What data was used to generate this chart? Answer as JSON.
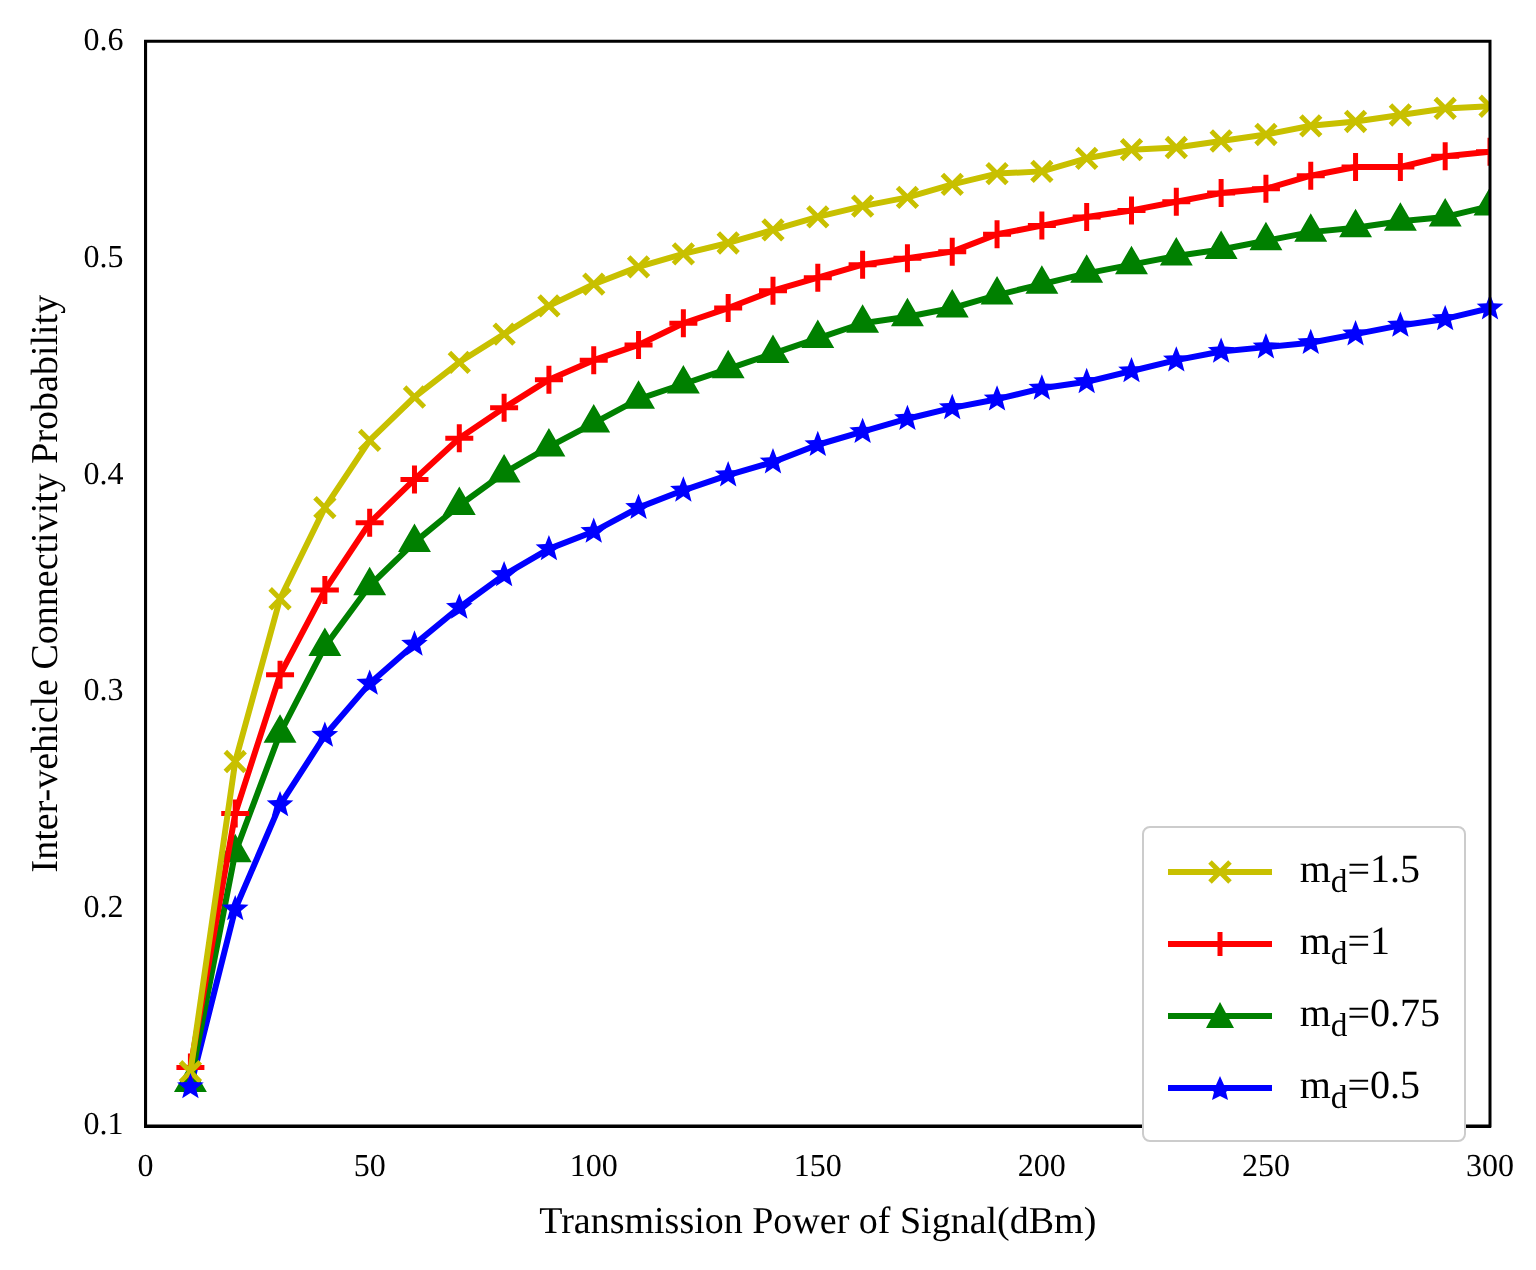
{
  "chart_data": {
    "type": "line",
    "xlabel": "Transmission Power of Signal(dBm)",
    "ylabel": "Inter-vehicle Connectivity Probability",
    "x": [
      10,
      20,
      30,
      40,
      50,
      60,
      70,
      80,
      90,
      100,
      110,
      120,
      130,
      140,
      150,
      160,
      170,
      180,
      190,
      200,
      210,
      220,
      230,
      240,
      250,
      260,
      270,
      280,
      290,
      300
    ],
    "xlim": [
      0,
      300
    ],
    "xticks": [
      0,
      50,
      100,
      150,
      200,
      250,
      300
    ],
    "ylim": [
      0.1,
      0.6
    ],
    "yticks": [
      0.1,
      0.2,
      0.3,
      0.4,
      0.5,
      0.6
    ],
    "grid": false,
    "legend": "bottom right",
    "line_style": "solid",
    "series": [
      {
        "name": "m$_{d}$=1.5",
        "color": "#c8c000",
        "marker": "cross",
        "values": [
          0.125,
          0.268,
          0.343,
          0.385,
          0.416,
          0.436,
          0.452,
          0.465,
          0.478,
          0.488,
          0.496,
          0.502,
          0.507,
          0.513,
          0.519,
          0.524,
          0.528,
          0.534,
          0.539,
          0.54,
          0.546,
          0.55,
          0.551,
          0.554,
          0.557,
          0.561,
          0.563,
          0.566,
          0.569,
          0.57
        ]
      },
      {
        "name": "m$_{d}$=1",
        "color": "#ff0000",
        "marker": "plus",
        "values": [
          0.127,
          0.244,
          0.308,
          0.347,
          0.378,
          0.398,
          0.417,
          0.431,
          0.444,
          0.453,
          0.46,
          0.47,
          0.477,
          0.485,
          0.491,
          0.497,
          0.5,
          0.503,
          0.511,
          0.515,
          0.519,
          0.522,
          0.526,
          0.53,
          0.532,
          0.538,
          0.542,
          0.542,
          0.547,
          0.549
        ]
      },
      {
        "name": "m$_{d}$=0.75",
        "color": "#008000",
        "marker": "triangle",
        "values": [
          0.12,
          0.226,
          0.281,
          0.321,
          0.349,
          0.369,
          0.386,
          0.401,
          0.413,
          0.424,
          0.435,
          0.442,
          0.449,
          0.456,
          0.463,
          0.47,
          0.473,
          0.477,
          0.483,
          0.488,
          0.493,
          0.497,
          0.501,
          0.504,
          0.508,
          0.512,
          0.514,
          0.517,
          0.519,
          0.524
        ]
      },
      {
        "name": "m$_{d}$=0.5",
        "color": "#0000ff",
        "marker": "star",
        "values": [
          0.118,
          0.2,
          0.248,
          0.28,
          0.304,
          0.322,
          0.339,
          0.354,
          0.366,
          0.374,
          0.385,
          0.393,
          0.4,
          0.406,
          0.414,
          0.42,
          0.426,
          0.431,
          0.435,
          0.44,
          0.443,
          0.448,
          0.453,
          0.457,
          0.459,
          0.461,
          0.465,
          0.469,
          0.472,
          0.477
        ]
      }
    ]
  }
}
